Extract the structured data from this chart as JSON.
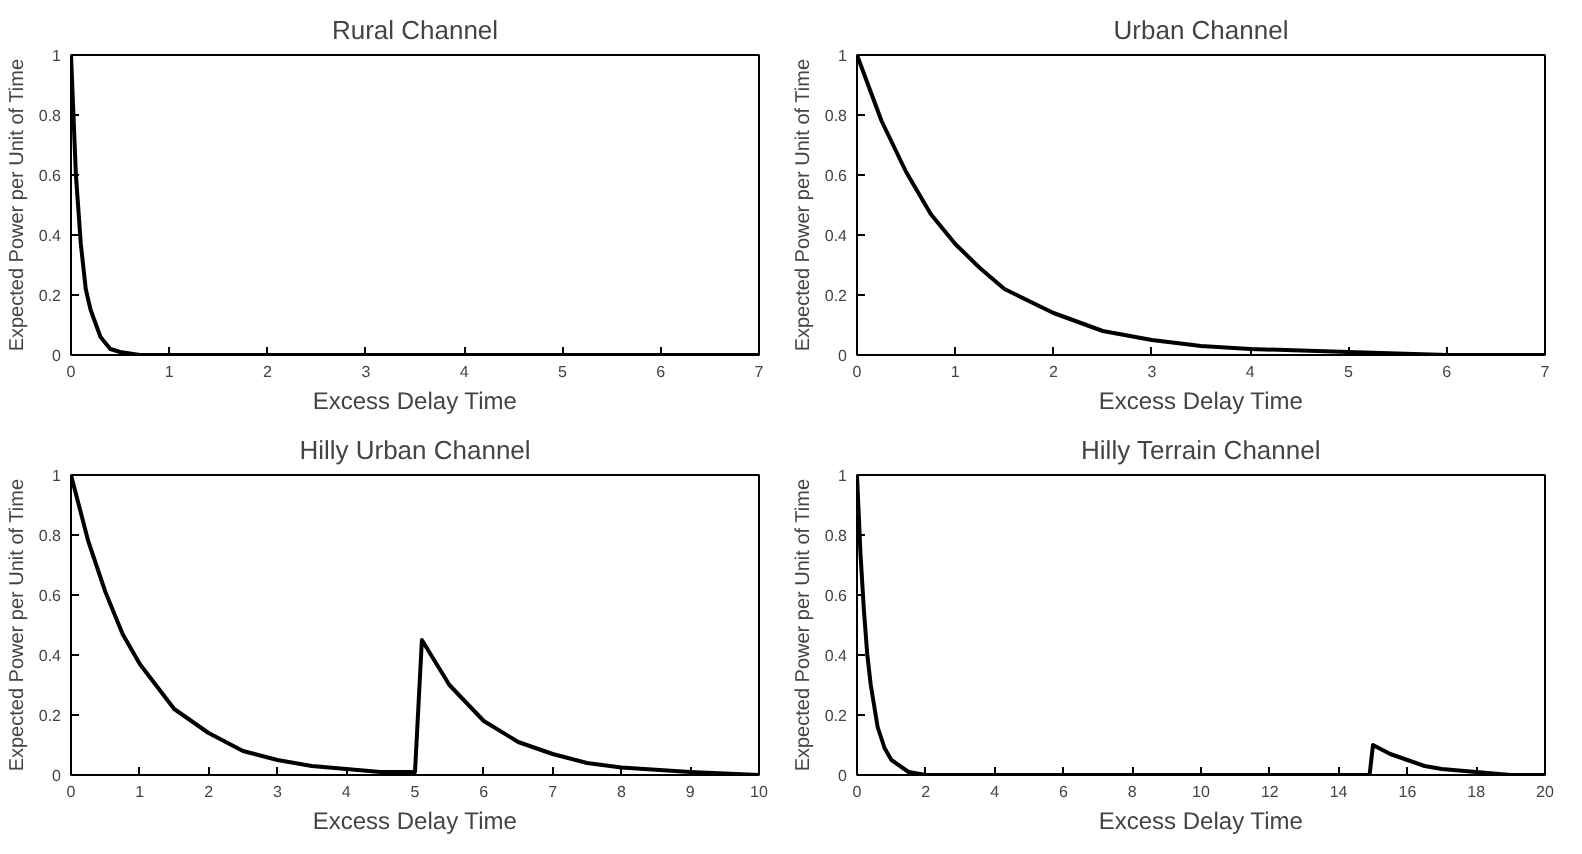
{
  "chart_data": [
    {
      "type": "line",
      "title": "Rural Channel",
      "xlabel": "Excess Delay Time",
      "ylabel": "Expected Power per Unit of Time",
      "grid": false,
      "xlim": [
        0,
        7
      ],
      "ylim": [
        0,
        1
      ],
      "xticks": [
        0,
        1,
        2,
        3,
        4,
        5,
        6,
        7
      ],
      "yticks": [
        0,
        0.2,
        0.4,
        0.6,
        0.8,
        1
      ],
      "series": [
        {
          "color": "#000000",
          "x": [
            0,
            0.05,
            0.1,
            0.15,
            0.2,
            0.3,
            0.4,
            0.5,
            0.6,
            0.7,
            7
          ],
          "values": [
            1,
            0.6,
            0.37,
            0.22,
            0.15,
            0.06,
            0.02,
            0.01,
            0.005,
            0,
            0
          ]
        }
      ]
    },
    {
      "type": "line",
      "title": "Urban Channel",
      "xlabel": "Excess Delay Time",
      "ylabel": "Expected Power per Unit of Time",
      "grid": false,
      "xlim": [
        0,
        7
      ],
      "ylim": [
        0,
        1
      ],
      "xticks": [
        0,
        1,
        2,
        3,
        4,
        5,
        6,
        7
      ],
      "yticks": [
        0,
        0.2,
        0.4,
        0.6,
        0.8,
        1
      ],
      "series": [
        {
          "color": "#000000",
          "x": [
            0,
            0.25,
            0.5,
            0.75,
            1,
            1.25,
            1.5,
            2,
            2.5,
            3,
            3.5,
            4,
            5,
            6,
            7
          ],
          "values": [
            1,
            0.78,
            0.61,
            0.47,
            0.37,
            0.29,
            0.22,
            0.14,
            0.08,
            0.05,
            0.03,
            0.02,
            0.01,
            0,
            0
          ]
        }
      ]
    },
    {
      "type": "line",
      "title": "Hilly Urban Channel",
      "xlabel": "Excess Delay Time",
      "ylabel": "Expected Power per Unit of Time",
      "grid": false,
      "xlim": [
        0,
        10
      ],
      "ylim": [
        0,
        1
      ],
      "xticks": [
        0,
        1,
        2,
        3,
        4,
        5,
        6,
        7,
        8,
        9,
        10
      ],
      "yticks": [
        0,
        0.2,
        0.4,
        0.6,
        0.8,
        1
      ],
      "series": [
        {
          "color": "#000000",
          "x": [
            0,
            0.25,
            0.5,
            0.75,
            1,
            1.5,
            2,
            2.5,
            3,
            3.5,
            4,
            4.5,
            5,
            5.1,
            5.5,
            6,
            6.5,
            7,
            7.5,
            8,
            9,
            10
          ],
          "values": [
            1,
            0.78,
            0.61,
            0.47,
            0.37,
            0.22,
            0.14,
            0.08,
            0.05,
            0.03,
            0.02,
            0.01,
            0.01,
            0.45,
            0.3,
            0.18,
            0.11,
            0.07,
            0.04,
            0.025,
            0.01,
            0
          ]
        }
      ]
    },
    {
      "type": "line",
      "title": "Hilly Terrain Channel",
      "xlabel": "Excess Delay Time",
      "ylabel": "Expected Power per Unit of Time",
      "grid": false,
      "xlim": [
        0,
        20
      ],
      "ylim": [
        0,
        1
      ],
      "xticks": [
        0,
        2,
        4,
        6,
        8,
        10,
        12,
        14,
        16,
        18,
        20
      ],
      "yticks": [
        0,
        0.2,
        0.4,
        0.6,
        0.8,
        1
      ],
      "series": [
        {
          "color": "#000000",
          "x": [
            0,
            0.1,
            0.2,
            0.3,
            0.4,
            0.6,
            0.8,
            1,
            1.5,
            2,
            14.9,
            15,
            15.5,
            16,
            16.5,
            17,
            18,
            19,
            20
          ],
          "values": [
            1,
            0.74,
            0.55,
            0.4,
            0.3,
            0.16,
            0.09,
            0.05,
            0.01,
            0,
            0,
            0.1,
            0.07,
            0.05,
            0.03,
            0.02,
            0.01,
            0,
            0
          ]
        }
      ]
    }
  ]
}
